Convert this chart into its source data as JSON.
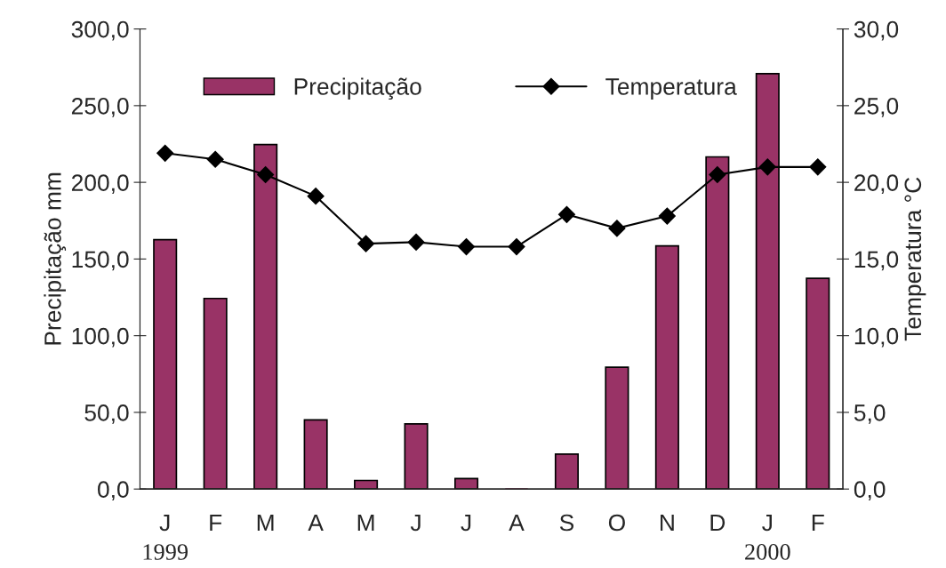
{
  "chart_data": {
    "type": "bar",
    "categories": [
      "J",
      "F",
      "M",
      "A",
      "M",
      "J",
      "J",
      "A",
      "S",
      "O",
      "N",
      "D",
      "J",
      "F"
    ],
    "ylabel": "Precipitação mm",
    "y2label": "Temperatura °C",
    "series": [
      {
        "name": "Precipitação",
        "color": "#993366",
        "values": [
          162.6,
          124.3,
          224.6,
          45.1,
          5.6,
          42.5,
          6.8,
          0,
          22.8,
          79.4,
          158.6,
          216.6,
          270.9,
          137.4
        ]
      },
      {
        "name": "Temperatura",
        "type": "line",
        "axis": "y2",
        "color": "#000000",
        "marker": "diamond",
        "values": [
          21.9,
          21.5,
          20.5,
          19.1,
          16.0,
          16.1,
          15.8,
          15.8,
          17.9,
          17.0,
          17.8,
          20.5,
          21.0,
          21.0
        ]
      }
    ],
    "ylim": [
      0,
      300
    ],
    "yticks": [
      {
        "value": 0,
        "label": "0,0"
      },
      {
        "value": 50,
        "label": "50,0"
      },
      {
        "value": 100,
        "label": "100,0"
      },
      {
        "value": 150,
        "label": "150,0"
      },
      {
        "value": 200,
        "label": "200,0"
      },
      {
        "value": 250,
        "label": "250,0"
      },
      {
        "value": 300,
        "label": "300,0"
      }
    ],
    "y2lim": [
      0,
      30
    ],
    "y2ticks": [
      {
        "value": 0,
        "label": "0,0"
      },
      {
        "value": 5,
        "label": "5,0"
      },
      {
        "value": 10,
        "label": "10,0"
      },
      {
        "value": 15,
        "label": "15,0"
      },
      {
        "value": 20,
        "label": "20,0"
      },
      {
        "value": 25,
        "label": "25,0"
      },
      {
        "value": 30,
        "label": "30,0"
      }
    ],
    "annotations": [
      "1999",
      "2000"
    ],
    "grid": false,
    "legend": "top"
  }
}
